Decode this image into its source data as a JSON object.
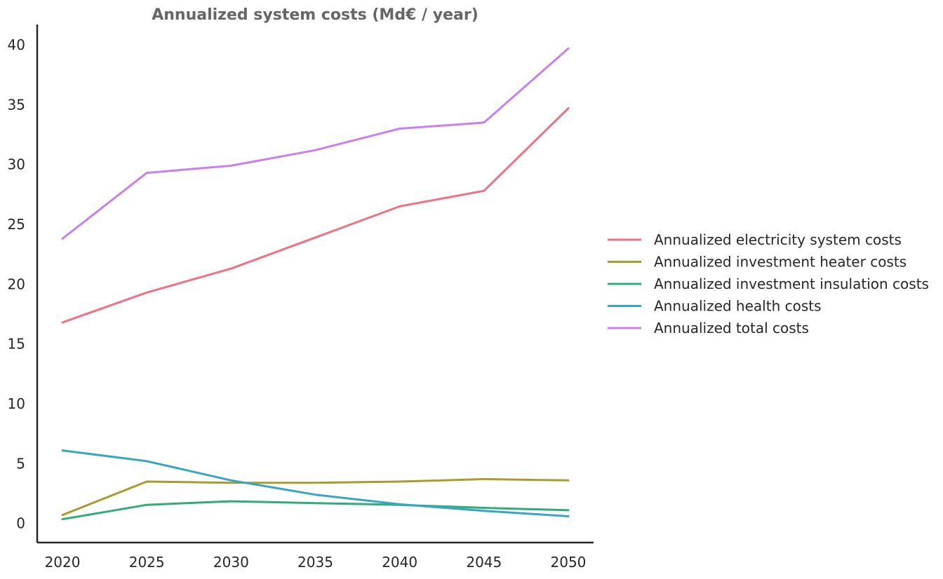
{
  "chart_data": {
    "type": "line",
    "title": "Annualized system costs (Md€ / year)",
    "xlabel": "",
    "ylabel": "",
    "x": [
      2020,
      2025,
      2030,
      2035,
      2040,
      2045,
      2050
    ],
    "x_ticks": [
      "2020",
      "2025",
      "2030",
      "2035",
      "2040",
      "2045",
      "2050"
    ],
    "y_ticks": [
      "0",
      "5",
      "10",
      "15",
      "20",
      "25",
      "30",
      "35",
      "40"
    ],
    "xlim": [
      2018.5,
      2051.5
    ],
    "ylim": [
      -1.6,
      41.7
    ],
    "grid": false,
    "legend_position": "right",
    "series": [
      {
        "name": "Annualized electricity system costs",
        "color": "#f07084",
        "values": [
          16.8,
          19.3,
          21.3,
          23.9,
          26.5,
          27.8,
          34.7
        ]
      },
      {
        "name": "Annualized investment heater costs",
        "color": "#a89b32",
        "values": [
          0.7,
          3.5,
          3.4,
          3.4,
          3.5,
          3.7,
          3.6
        ]
      },
      {
        "name": "Annualized investment insulation costs",
        "color": "#33ab78",
        "values": [
          0.35,
          1.55,
          1.85,
          1.7,
          1.55,
          1.3,
          1.1
        ]
      },
      {
        "name": "Annualized health costs",
        "color": "#38a6c0",
        "values": [
          6.1,
          5.2,
          3.6,
          2.4,
          1.6,
          1.05,
          0.6
        ]
      },
      {
        "name": "Annualized total costs",
        "color": "#c97ff0",
        "values": [
          23.8,
          29.3,
          29.9,
          31.2,
          33.0,
          33.5,
          39.7
        ]
      }
    ]
  }
}
